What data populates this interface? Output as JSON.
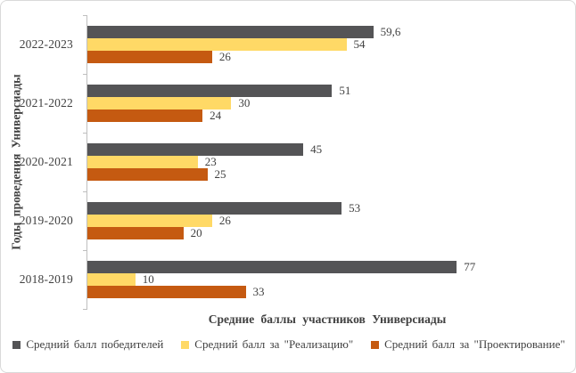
{
  "chart_data": {
    "type": "bar",
    "orientation": "horizontal",
    "title": "",
    "xlabel": "Средние баллы участников Универсиады",
    "ylabel": "Годы проведения Универсиады",
    "xlim": [
      0,
      100
    ],
    "grid": false,
    "legend_position": "bottom",
    "categories": [
      "2022-2023",
      "2021-2022",
      "2020-2021",
      "2019-2020",
      "2018-2019"
    ],
    "series": [
      {
        "name": "Средний балл победителей",
        "color": "#545456",
        "values": [
          59.6,
          51,
          45,
          53,
          77
        ],
        "labels": [
          "59,6",
          "51",
          "45",
          "53",
          "77"
        ]
      },
      {
        "name": "Средний балл за \"Реализацию\"",
        "color": "#FFD966",
        "values": [
          54,
          30,
          23,
          26,
          10
        ],
        "labels": [
          "54",
          "30",
          "23",
          "26",
          "10"
        ]
      },
      {
        "name": "Средний балл за \"Проектирование\"",
        "color": "#C55A11",
        "values": [
          26,
          24,
          25,
          20,
          33
        ],
        "labels": [
          "26",
          "24",
          "25",
          "20",
          "33"
        ]
      }
    ],
    "colors": {
      "axis": "#BFBFBF",
      "text": "#404040",
      "frame_border": "#D9D9D9"
    }
  }
}
